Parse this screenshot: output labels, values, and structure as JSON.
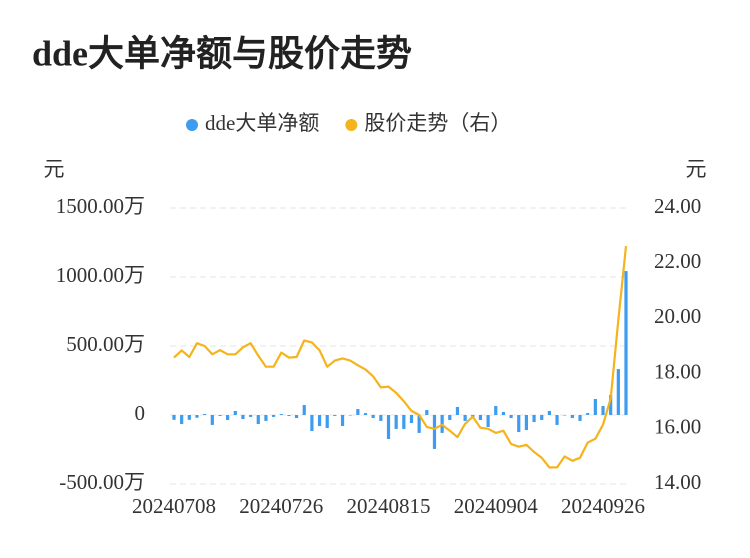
{
  "chart_data": {
    "type": "bar-line",
    "title": "dde大单净额与股价走势",
    "y_axis_label": "元",
    "y2_axis_label": "元",
    "categories": [
      "20240708",
      null,
      null,
      null,
      null,
      null,
      null,
      null,
      null,
      null,
      null,
      null,
      null,
      null,
      "20240726",
      null,
      null,
      null,
      null,
      null,
      null,
      null,
      null,
      null,
      null,
      null,
      null,
      null,
      "20240815",
      null,
      null,
      null,
      null,
      null,
      null,
      null,
      null,
      null,
      null,
      null,
      null,
      null,
      "20240904",
      null,
      null,
      null,
      null,
      null,
      null,
      null,
      null,
      null,
      null,
      null,
      null,
      null,
      "20240926",
      null,
      null,
      null
    ],
    "series": [
      {
        "name": "dde大单净额",
        "kind": "bar",
        "color": "#3d9cf0",
        "values": [
          -35,
          -65,
          -35,
          -20,
          7,
          -72,
          -7,
          -36,
          29,
          -29,
          -14,
          -65,
          -43,
          -14,
          7,
          -7,
          -22,
          72,
          -116,
          -80,
          -94,
          -7,
          -80,
          0,
          43,
          14,
          -22,
          -43,
          -174,
          -101,
          -101,
          -58,
          -130,
          36,
          -246,
          -130,
          -36,
          58,
          -43,
          -22,
          -36,
          -87,
          65,
          22,
          -22,
          -123,
          -109,
          -51,
          -36,
          29,
          -72,
          0,
          -22,
          -43,
          14,
          116,
          65,
          145,
          333,
          1043
        ]
      },
      {
        "name": "股价走势（右）",
        "kind": "line",
        "axis": "y2",
        "color": "#f5b31c",
        "values": [
          18.58,
          18.84,
          18.6,
          19.1,
          19.0,
          18.7,
          18.85,
          18.7,
          18.7,
          18.95,
          19.1,
          18.65,
          18.25,
          18.25,
          18.76,
          18.58,
          18.6,
          19.2,
          19.13,
          18.84,
          18.25,
          18.47,
          18.55,
          18.47,
          18.3,
          18.15,
          17.9,
          17.5,
          17.53,
          17.3,
          17.0,
          16.65,
          16.5,
          16.07,
          16.0,
          16.15,
          15.93,
          15.7,
          16.18,
          16.44,
          16.04,
          16.0,
          15.85,
          15.93,
          15.45,
          15.35,
          15.42,
          15.16,
          14.95,
          14.6,
          14.6,
          15.0,
          14.84,
          14.95,
          15.5,
          15.64,
          16.15,
          17.1,
          19.93,
          22.62
        ]
      }
    ],
    "ylim": [
      -500,
      1500
    ],
    "yticks": [
      {
        "value": -500,
        "label": "-500.00万"
      },
      0,
      {
        "value": 500,
        "label": "500.00万"
      },
      {
        "value": 1000,
        "label": "1000.00万"
      },
      {
        "value": 1500,
        "label": "1500.00万"
      }
    ],
    "y2lim": [
      14,
      24
    ],
    "y2ticks": [
      {
        "value": 14,
        "label": "14.00"
      },
      {
        "value": 16,
        "label": "16.00"
      },
      {
        "value": 18,
        "label": "18.00"
      },
      {
        "value": 20,
        "label": "20.00"
      },
      {
        "value": 22,
        "label": "22.00"
      },
      {
        "value": 24,
        "label": "24.00"
      }
    ],
    "grid": true,
    "legend": "top"
  }
}
